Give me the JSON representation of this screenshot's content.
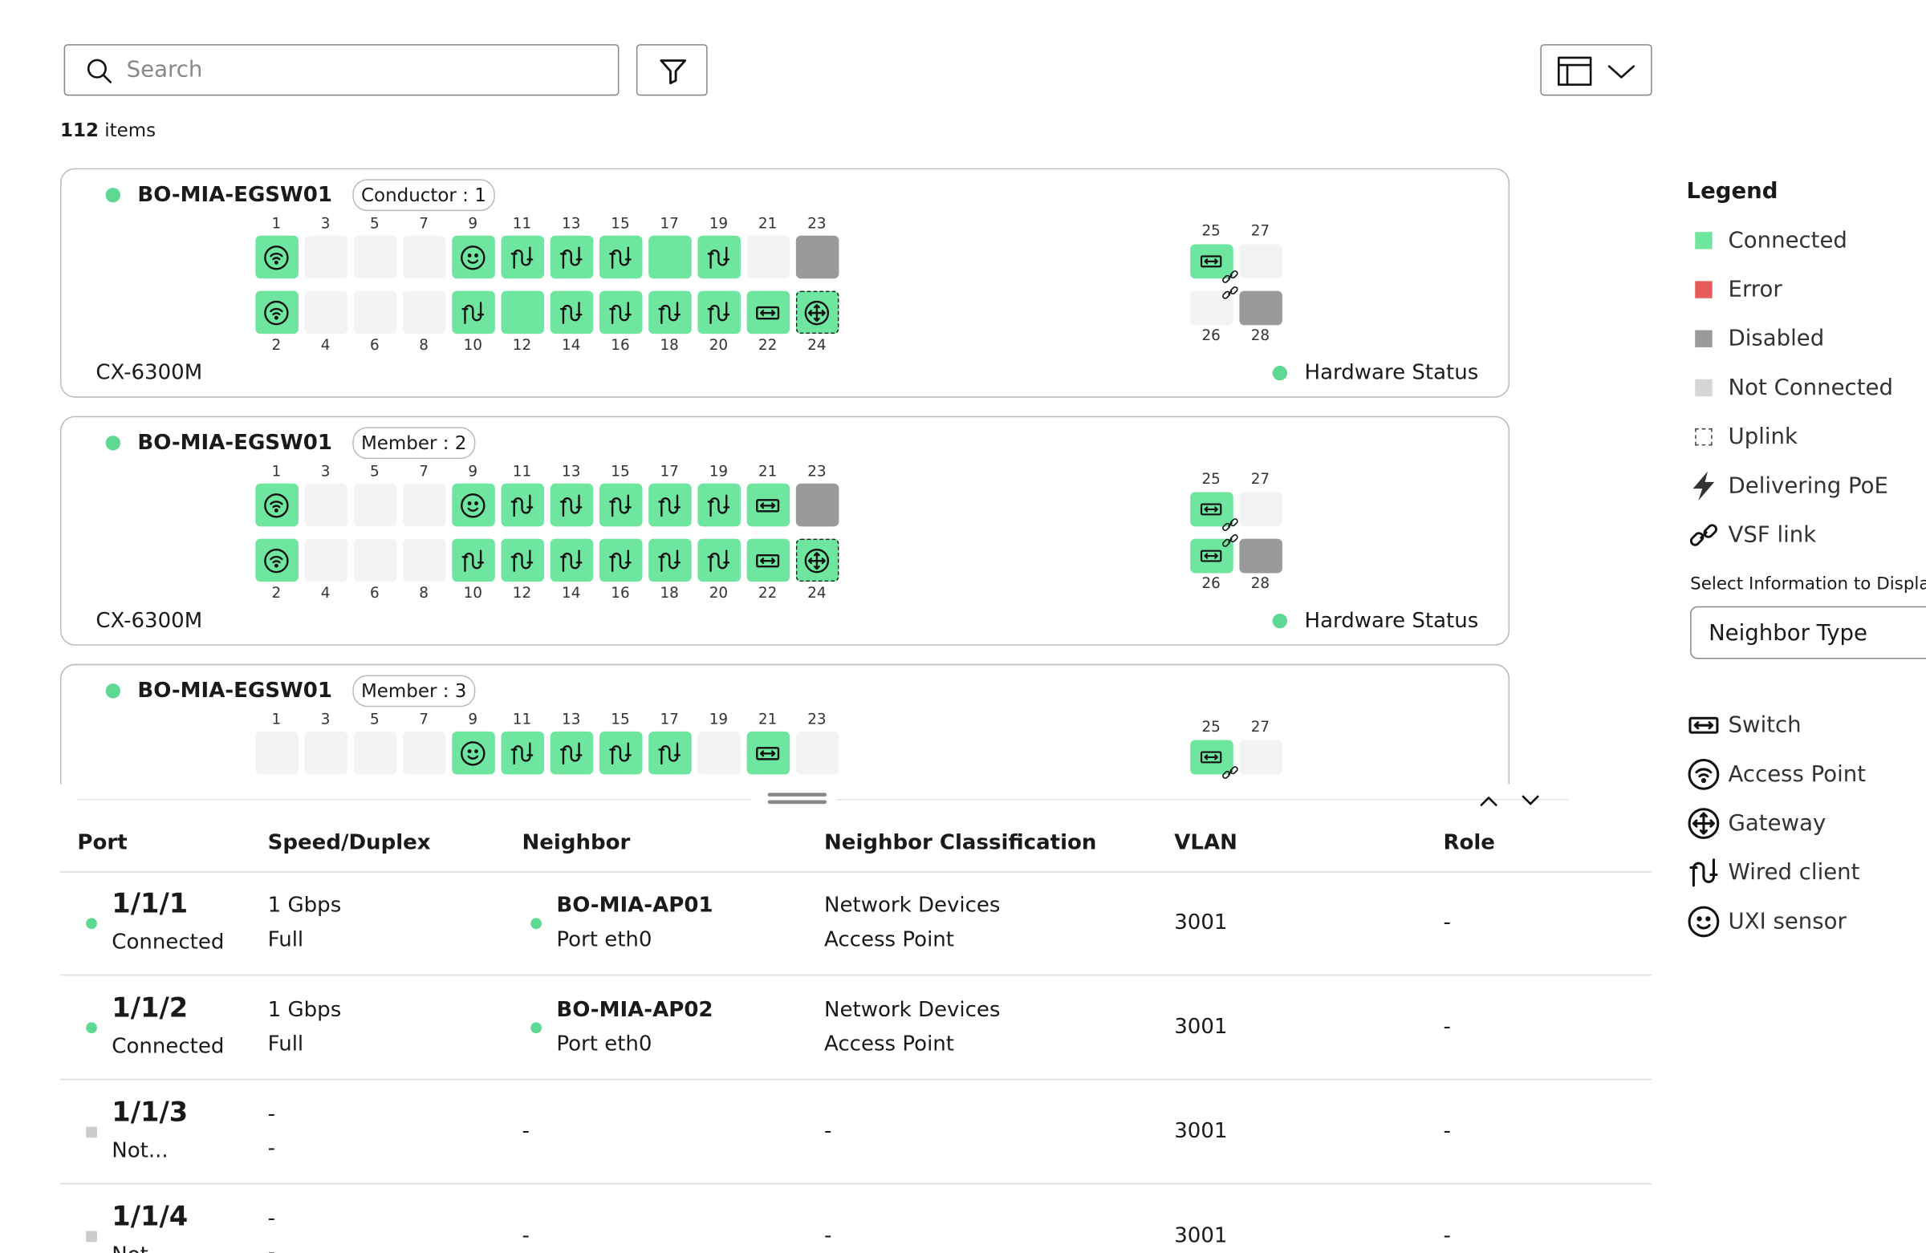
{
  "search_placeholder": "Search",
  "item_count": {
    "count": 112,
    "label": "items"
  },
  "switches": [
    {
      "name": "BO-MIA-EGSW01",
      "role": "Conductor : 1",
      "model": "CX-6300M",
      "hardware_status": "Hardware Status",
      "top_ports": [
        1,
        3,
        5,
        7,
        9,
        11,
        13,
        15,
        17,
        19,
        21,
        23
      ],
      "bottom_ports": [
        2,
        4,
        6,
        8,
        10,
        12,
        14,
        16,
        18,
        20,
        22,
        24
      ],
      "uplink_top": [
        25,
        27
      ],
      "uplink_bottom": [
        26,
        28
      ]
    },
    {
      "name": "BO-MIA-EGSW01",
      "role": "Member : 2",
      "model": "CX-6300M",
      "hardware_status": "Hardware Status",
      "top_ports": [
        1,
        3,
        5,
        7,
        9,
        11,
        13,
        15,
        17,
        19,
        21,
        23
      ],
      "bottom_ports": [
        2,
        4,
        6,
        8,
        10,
        12,
        14,
        16,
        18,
        20,
        22,
        24
      ],
      "uplink_top": [
        25,
        27
      ],
      "uplink_bottom": [
        26,
        28
      ]
    },
    {
      "name": "BO-MIA-EGSW01",
      "role": "Member : 3",
      "top_ports": [
        1,
        3,
        5,
        7,
        9,
        11,
        13,
        15,
        17,
        19,
        21,
        23
      ],
      "uplink_top": [
        25,
        27
      ]
    }
  ],
  "table": {
    "columns": [
      "Port",
      "Speed/Duplex",
      "Neighbor",
      "Neighbor Classification",
      "VLAN",
      "Role"
    ],
    "rows": [
      {
        "port": "1/1/1",
        "status": "Connected",
        "speed": "1 Gbps",
        "duplex": "Full",
        "neighbor": "BO-MIA-AP01",
        "neighbor_port": "Port eth0",
        "classification": "Network Devices",
        "classification_type": "Access Point",
        "vlan": 3001,
        "role": "-"
      },
      {
        "port": "1/1/2",
        "status": "Connected",
        "speed": "1 Gbps",
        "duplex": "Full",
        "neighbor": "BO-MIA-AP02",
        "neighbor_port": "Port eth0",
        "classification": "Network Devices",
        "classification_type": "Access Point",
        "vlan": 3001,
        "role": "-"
      },
      {
        "port": "1/1/3",
        "status": "Not...",
        "speed": "-",
        "duplex": "-",
        "neighbor": "-",
        "classification": "-",
        "vlan": 3001,
        "role": "-"
      },
      {
        "port": "1/1/4",
        "status": "Not...",
        "speed": "-",
        "duplex": "-",
        "neighbor": "-",
        "classification": "-",
        "vlan": 3001,
        "role": "-"
      }
    ]
  },
  "legend": {
    "title": "Legend",
    "items": [
      "Connected",
      "Error",
      "Disabled",
      "Not Connected",
      "Uplink",
      "Delivering PoE",
      "VSF link"
    ]
  },
  "display": {
    "label": "Select Information to Display",
    "value": "Neighbor Type"
  },
  "neighbor_types": [
    "Switch",
    "Access Point",
    "Gateway",
    "Wired client",
    "UXI sensor"
  ]
}
